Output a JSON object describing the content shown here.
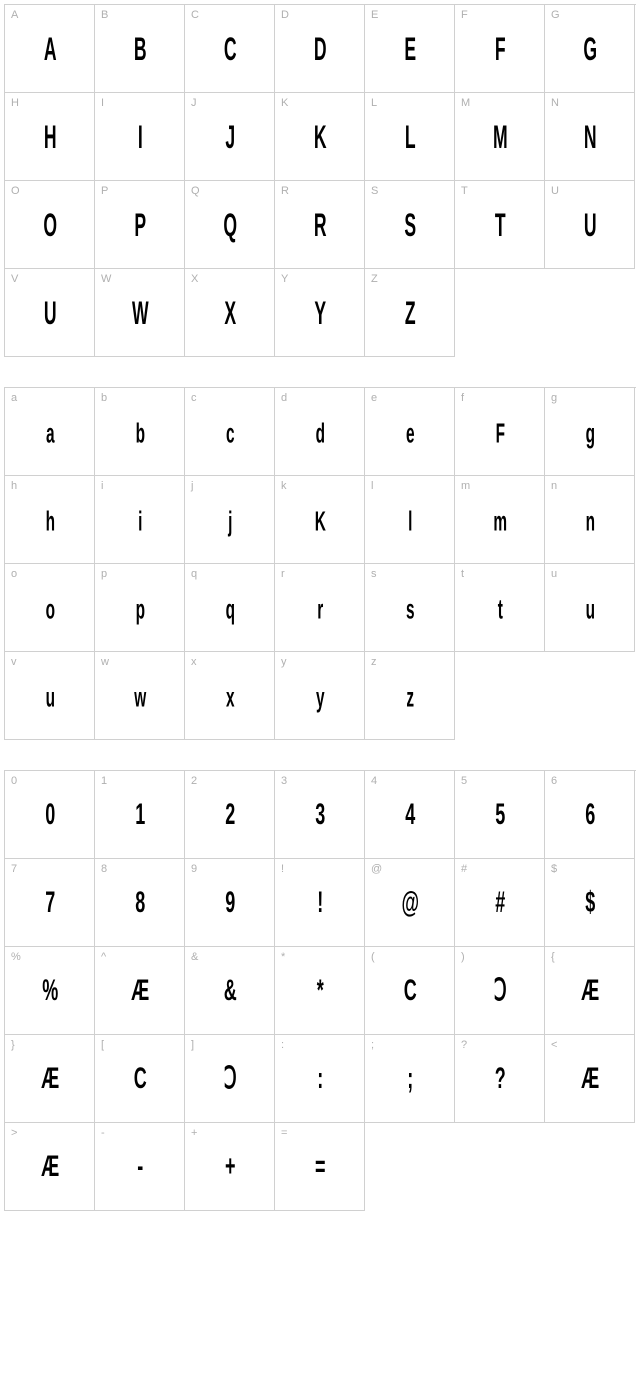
{
  "styling": {
    "cell_size": {
      "width": 90,
      "height": 88
    },
    "columns": 7,
    "border_color": "#d0d0d0",
    "background_color": "#ffffff",
    "label_color": "#b0b0b0",
    "label_fontsize": 11,
    "glyph_color": "#000000",
    "glyph_fontsize": 32,
    "glyph_scale_x": 0.55,
    "section_gap": 30
  },
  "sections": [
    {
      "name": "uppercase",
      "cells": [
        {
          "label": "A",
          "glyph": "A"
        },
        {
          "label": "B",
          "glyph": "B"
        },
        {
          "label": "C",
          "glyph": "C"
        },
        {
          "label": "D",
          "glyph": "D"
        },
        {
          "label": "E",
          "glyph": "E"
        },
        {
          "label": "F",
          "glyph": "F"
        },
        {
          "label": "G",
          "glyph": "G"
        },
        {
          "label": "H",
          "glyph": "H"
        },
        {
          "label": "I",
          "glyph": "I"
        },
        {
          "label": "J",
          "glyph": "J"
        },
        {
          "label": "K",
          "glyph": "K"
        },
        {
          "label": "L",
          "glyph": "L"
        },
        {
          "label": "M",
          "glyph": "M"
        },
        {
          "label": "N",
          "glyph": "N"
        },
        {
          "label": "O",
          "glyph": "O"
        },
        {
          "label": "P",
          "glyph": "P"
        },
        {
          "label": "Q",
          "glyph": "Q"
        },
        {
          "label": "R",
          "glyph": "R"
        },
        {
          "label": "S",
          "glyph": "S"
        },
        {
          "label": "T",
          "glyph": "T"
        },
        {
          "label": "U",
          "glyph": "U"
        },
        {
          "label": "V",
          "glyph": "U"
        },
        {
          "label": "W",
          "glyph": "W"
        },
        {
          "label": "X",
          "glyph": "X"
        },
        {
          "label": "Y",
          "glyph": "Y"
        },
        {
          "label": "Z",
          "glyph": "Z"
        }
      ],
      "fill_to": 28
    },
    {
      "name": "lowercase",
      "cells": [
        {
          "label": "a",
          "glyph": "a"
        },
        {
          "label": "b",
          "glyph": "b"
        },
        {
          "label": "c",
          "glyph": "c"
        },
        {
          "label": "d",
          "glyph": "d"
        },
        {
          "label": "e",
          "glyph": "e"
        },
        {
          "label": "f",
          "glyph": "F"
        },
        {
          "label": "g",
          "glyph": "g"
        },
        {
          "label": "h",
          "glyph": "h"
        },
        {
          "label": "i",
          "glyph": "i"
        },
        {
          "label": "j",
          "glyph": "j"
        },
        {
          "label": "k",
          "glyph": "K"
        },
        {
          "label": "l",
          "glyph": "l"
        },
        {
          "label": "m",
          "glyph": "m"
        },
        {
          "label": "n",
          "glyph": "n"
        },
        {
          "label": "o",
          "glyph": "o"
        },
        {
          "label": "p",
          "glyph": "p"
        },
        {
          "label": "q",
          "glyph": "q"
        },
        {
          "label": "r",
          "glyph": "r"
        },
        {
          "label": "s",
          "glyph": "s"
        },
        {
          "label": "t",
          "glyph": "t"
        },
        {
          "label": "u",
          "glyph": "u"
        },
        {
          "label": "v",
          "glyph": "u"
        },
        {
          "label": "w",
          "glyph": "w"
        },
        {
          "label": "x",
          "glyph": "x"
        },
        {
          "label": "y",
          "glyph": "y"
        },
        {
          "label": "z",
          "glyph": "z"
        }
      ],
      "fill_to": 28
    },
    {
      "name": "symbols",
      "cells": [
        {
          "label": "0",
          "glyph": "0"
        },
        {
          "label": "1",
          "glyph": "1"
        },
        {
          "label": "2",
          "glyph": "2"
        },
        {
          "label": "3",
          "glyph": "3"
        },
        {
          "label": "4",
          "glyph": "4"
        },
        {
          "label": "5",
          "glyph": "5"
        },
        {
          "label": "6",
          "glyph": "6"
        },
        {
          "label": "7",
          "glyph": "7"
        },
        {
          "label": "8",
          "glyph": "8"
        },
        {
          "label": "9",
          "glyph": "9"
        },
        {
          "label": "!",
          "glyph": "!"
        },
        {
          "label": "@",
          "glyph": "@"
        },
        {
          "label": "#",
          "glyph": "#"
        },
        {
          "label": "$",
          "glyph": "$"
        },
        {
          "label": "%",
          "glyph": "%"
        },
        {
          "label": "^",
          "glyph": "Æ"
        },
        {
          "label": "&",
          "glyph": "&"
        },
        {
          "label": "*",
          "glyph": "*"
        },
        {
          "label": "(",
          "glyph": "C"
        },
        {
          "label": ")",
          "glyph": "Ↄ"
        },
        {
          "label": "{",
          "glyph": "Æ"
        },
        {
          "label": "}",
          "glyph": "Æ"
        },
        {
          "label": "[",
          "glyph": "C"
        },
        {
          "label": "]",
          "glyph": "Ↄ"
        },
        {
          "label": ":",
          "glyph": ":"
        },
        {
          "label": ";",
          "glyph": ";"
        },
        {
          "label": "?",
          "glyph": "?"
        },
        {
          "label": "<",
          "glyph": "Æ"
        },
        {
          "label": ">",
          "glyph": "Æ"
        },
        {
          "label": "-",
          "glyph": "-"
        },
        {
          "label": "+",
          "glyph": "+"
        },
        {
          "label": "=",
          "glyph": "="
        }
      ],
      "fill_to": 35
    }
  ]
}
